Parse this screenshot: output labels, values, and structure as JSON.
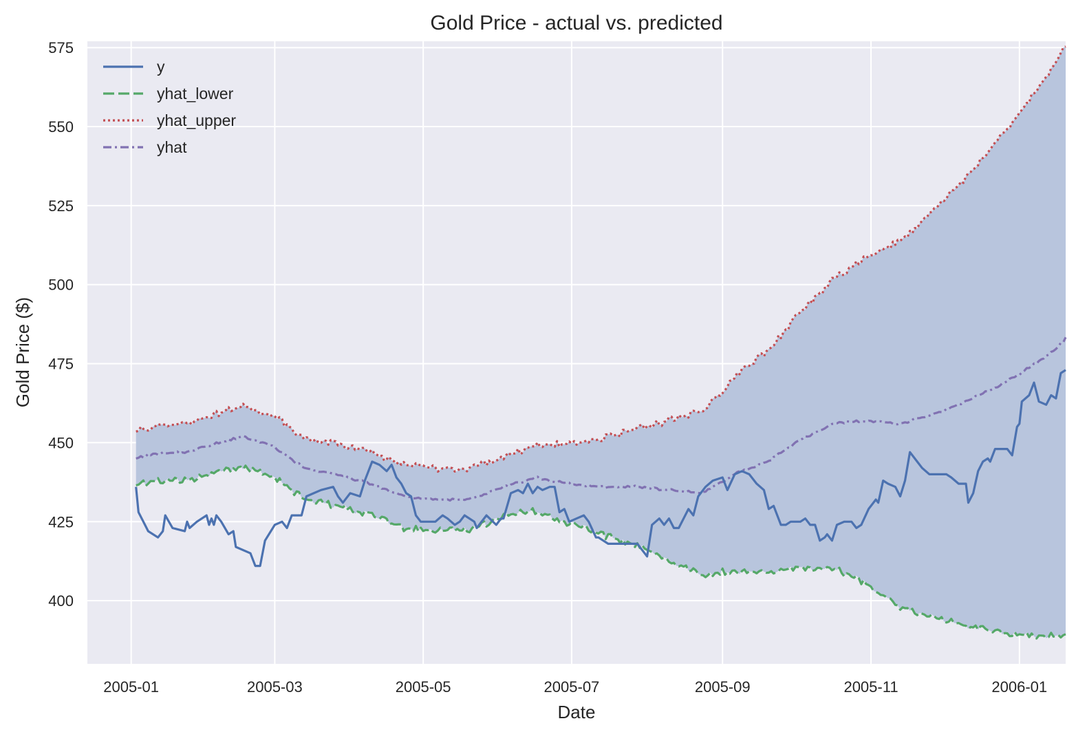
{
  "chart_data": {
    "type": "line",
    "title": "Gold Price - actual vs. predicted",
    "xlabel": "Date",
    "ylabel": "Gold Price ($)",
    "x_axis_type": "date",
    "xlim": [
      "2004-12-14",
      "2006-01-20"
    ],
    "ylim": [
      380,
      577
    ],
    "x_ticks": [
      "2005-01-01",
      "2005-03-01",
      "2005-05-01",
      "2005-07-01",
      "2005-09-01",
      "2005-11-01",
      "2006-01-01"
    ],
    "x_tick_labels": [
      "2005-01",
      "2005-03",
      "2005-05",
      "2005-07",
      "2005-09",
      "2005-11",
      "2006-01"
    ],
    "y_ticks": [
      400,
      425,
      450,
      475,
      500,
      525,
      550,
      575
    ],
    "y_tick_labels": [
      "400",
      "425",
      "450",
      "475",
      "500",
      "525",
      "550",
      "575"
    ],
    "grid": true,
    "legend_position": "top-left",
    "band": {
      "between": [
        "yhat_lower",
        "yhat_upper"
      ],
      "color": "#b8c5dd"
    },
    "series": [
      {
        "name": "y",
        "color": "#4c72b0",
        "dash": "solid",
        "points": [
          [
            "2005-01-03",
            436
          ],
          [
            "2005-01-04",
            428
          ],
          [
            "2005-01-06",
            425
          ],
          [
            "2005-01-08",
            422
          ],
          [
            "2005-01-12",
            420
          ],
          [
            "2005-01-14",
            422
          ],
          [
            "2005-01-15",
            427
          ],
          [
            "2005-01-18",
            423
          ],
          [
            "2005-01-23",
            422
          ],
          [
            "2005-01-24",
            425
          ],
          [
            "2005-01-25",
            423
          ],
          [
            "2005-01-28",
            425
          ],
          [
            "2005-02-01",
            427
          ],
          [
            "2005-02-02",
            424
          ],
          [
            "2005-02-03",
            426
          ],
          [
            "2005-02-04",
            424
          ],
          [
            "2005-02-05",
            427
          ],
          [
            "2005-02-07",
            425
          ],
          [
            "2005-02-10",
            421
          ],
          [
            "2005-02-12",
            422
          ],
          [
            "2005-02-13",
            417
          ],
          [
            "2005-02-19",
            415
          ],
          [
            "2005-02-21",
            411
          ],
          [
            "2005-02-23",
            411
          ],
          [
            "2005-02-25",
            419
          ],
          [
            "2005-03-01",
            424
          ],
          [
            "2005-03-04",
            425
          ],
          [
            "2005-03-06",
            423
          ],
          [
            "2005-03-08",
            427
          ],
          [
            "2005-03-12",
            427
          ],
          [
            "2005-03-14",
            433
          ],
          [
            "2005-03-17",
            434
          ],
          [
            "2005-03-20",
            435
          ],
          [
            "2005-03-25",
            436
          ],
          [
            "2005-03-27",
            433
          ],
          [
            "2005-03-29",
            431
          ],
          [
            "2005-04-01",
            434
          ],
          [
            "2005-04-05",
            433
          ],
          [
            "2005-04-07",
            438
          ],
          [
            "2005-04-10",
            444
          ],
          [
            "2005-04-13",
            443
          ],
          [
            "2005-04-16",
            441
          ],
          [
            "2005-04-18",
            443
          ],
          [
            "2005-04-20",
            439
          ],
          [
            "2005-04-22",
            437
          ],
          [
            "2005-04-24",
            434
          ],
          [
            "2005-04-26",
            433
          ],
          [
            "2005-04-28",
            427
          ],
          [
            "2005-04-30",
            425
          ],
          [
            "2005-05-06",
            425
          ],
          [
            "2005-05-09",
            427
          ],
          [
            "2005-05-11",
            426
          ],
          [
            "2005-05-14",
            424
          ],
          [
            "2005-05-16",
            425
          ],
          [
            "2005-05-18",
            427
          ],
          [
            "2005-05-22",
            425
          ],
          [
            "2005-05-23",
            423
          ],
          [
            "2005-05-24",
            424
          ],
          [
            "2005-05-27",
            427
          ],
          [
            "2005-05-31",
            424
          ],
          [
            "2005-06-02",
            426
          ],
          [
            "2005-06-03",
            426
          ],
          [
            "2005-06-06",
            434
          ],
          [
            "2005-06-09",
            435
          ],
          [
            "2005-06-11",
            434
          ],
          [
            "2005-06-13",
            437
          ],
          [
            "2005-06-15",
            434
          ],
          [
            "2005-06-17",
            436
          ],
          [
            "2005-06-19",
            435
          ],
          [
            "2005-06-22",
            436
          ],
          [
            "2005-06-24",
            436
          ],
          [
            "2005-06-26",
            428
          ],
          [
            "2005-06-28",
            429
          ],
          [
            "2005-06-30",
            425
          ],
          [
            "2005-07-03",
            426
          ],
          [
            "2005-07-06",
            427
          ],
          [
            "2005-07-08",
            425
          ],
          [
            "2005-07-11",
            420
          ],
          [
            "2005-07-12",
            420
          ],
          [
            "2005-07-14",
            419
          ],
          [
            "2005-07-16",
            418
          ],
          [
            "2005-07-18",
            418
          ],
          [
            "2005-07-20",
            418
          ],
          [
            "2005-07-24",
            418
          ],
          [
            "2005-07-25",
            418
          ],
          [
            "2005-07-28",
            418
          ],
          [
            "2005-08-01",
            414
          ],
          [
            "2005-08-03",
            424
          ],
          [
            "2005-08-06",
            426
          ],
          [
            "2005-08-08",
            424
          ],
          [
            "2005-08-10",
            426
          ],
          [
            "2005-08-12",
            423
          ],
          [
            "2005-08-14",
            423
          ],
          [
            "2005-08-18",
            429
          ],
          [
            "2005-08-20",
            427
          ],
          [
            "2005-08-22",
            433
          ],
          [
            "2005-08-25",
            436
          ],
          [
            "2005-08-28",
            438
          ],
          [
            "2005-09-01",
            439
          ],
          [
            "2005-09-03",
            435
          ],
          [
            "2005-09-06",
            440
          ],
          [
            "2005-09-09",
            441
          ],
          [
            "2005-09-12",
            440
          ],
          [
            "2005-09-15",
            437
          ],
          [
            "2005-09-18",
            435
          ],
          [
            "2005-09-20",
            429
          ],
          [
            "2005-09-22",
            430
          ],
          [
            "2005-09-25",
            424
          ],
          [
            "2005-09-27",
            424
          ],
          [
            "2005-09-29",
            425
          ],
          [
            "2005-10-01",
            425
          ],
          [
            "2005-10-03",
            425
          ],
          [
            "2005-10-05",
            426
          ],
          [
            "2005-10-07",
            424
          ],
          [
            "2005-10-09",
            424
          ],
          [
            "2005-10-11",
            419
          ],
          [
            "2005-10-13",
            420
          ],
          [
            "2005-10-14",
            421
          ],
          [
            "2005-10-16",
            419
          ],
          [
            "2005-10-18",
            424
          ],
          [
            "2005-10-21",
            425
          ],
          [
            "2005-10-24",
            425
          ],
          [
            "2005-10-26",
            423
          ],
          [
            "2005-10-28",
            424
          ],
          [
            "2005-10-31",
            429
          ],
          [
            "2005-11-03",
            432
          ],
          [
            "2005-11-04",
            431
          ],
          [
            "2005-11-06",
            438
          ],
          [
            "2005-11-08",
            437
          ],
          [
            "2005-11-11",
            436
          ],
          [
            "2005-11-13",
            433
          ],
          [
            "2005-11-15",
            438
          ],
          [
            "2005-11-17",
            447
          ],
          [
            "2005-11-20",
            444
          ],
          [
            "2005-11-22",
            442
          ],
          [
            "2005-11-25",
            440
          ],
          [
            "2005-11-28",
            440
          ],
          [
            "2005-12-01",
            440
          ],
          [
            "2005-12-02",
            440
          ],
          [
            "2005-12-04",
            439
          ],
          [
            "2005-12-07",
            437
          ],
          [
            "2005-12-10",
            437
          ],
          [
            "2005-12-11",
            431
          ],
          [
            "2005-12-13",
            434
          ],
          [
            "2005-12-15",
            441
          ],
          [
            "2005-12-17",
            444
          ],
          [
            "2005-12-19",
            445
          ],
          [
            "2005-12-20",
            444
          ],
          [
            "2005-12-22",
            448
          ],
          [
            "2005-12-25",
            448
          ],
          [
            "2005-12-27",
            448
          ],
          [
            "2005-12-29",
            446
          ],
          [
            "2005-12-31",
            455
          ],
          [
            "2006-01-01",
            456
          ],
          [
            "2006-01-02",
            463
          ],
          [
            "2006-01-05",
            465
          ],
          [
            "2006-01-07",
            469
          ],
          [
            "2006-01-09",
            463
          ],
          [
            "2006-01-12",
            462
          ],
          [
            "2006-01-14",
            465
          ],
          [
            "2006-01-16",
            464
          ],
          [
            "2006-01-18",
            472
          ],
          [
            "2006-01-20",
            473
          ]
        ]
      },
      {
        "name": "yhat_lower",
        "color": "#55a868",
        "dash": "dashed",
        "points": []
      },
      {
        "name": "yhat_upper",
        "color": "#c44e52",
        "dash": "dotted",
        "points": []
      },
      {
        "name": "yhat",
        "color": "#8172b2",
        "dash": "dashdot",
        "points": []
      }
    ]
  }
}
